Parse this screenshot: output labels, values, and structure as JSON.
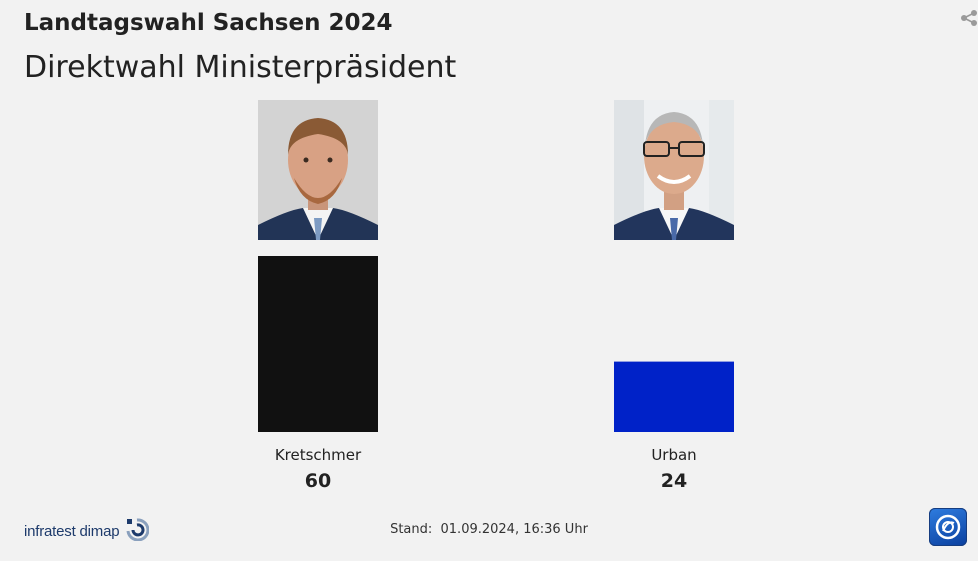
{
  "header": {
    "title": "Landtagswahl Sachsen 2024",
    "subtitle": "Direktwahl Ministerpräsident"
  },
  "chart_data": {
    "type": "bar",
    "title": "Landtagswahl Sachsen 2024",
    "subtitle": "Direktwahl Ministerpräsident",
    "categories": [
      "Kretschmer",
      "Urban"
    ],
    "values": [
      60,
      24
    ],
    "value_labels": [
      "60",
      "24"
    ],
    "colors": [
      "#111111",
      "#0022c8"
    ],
    "ylim": [
      0,
      60
    ],
    "grid": false,
    "legend": "none"
  },
  "footer": {
    "source_logo_text": "infratest dimap",
    "stand_label": "Stand:",
    "stand_value": "01.09.2024, 16:36 Uhr"
  },
  "icons": {
    "share": "share-icon",
    "broadcaster": "ard-logo-icon",
    "source": "infratest-dimap-logo-icon"
  }
}
